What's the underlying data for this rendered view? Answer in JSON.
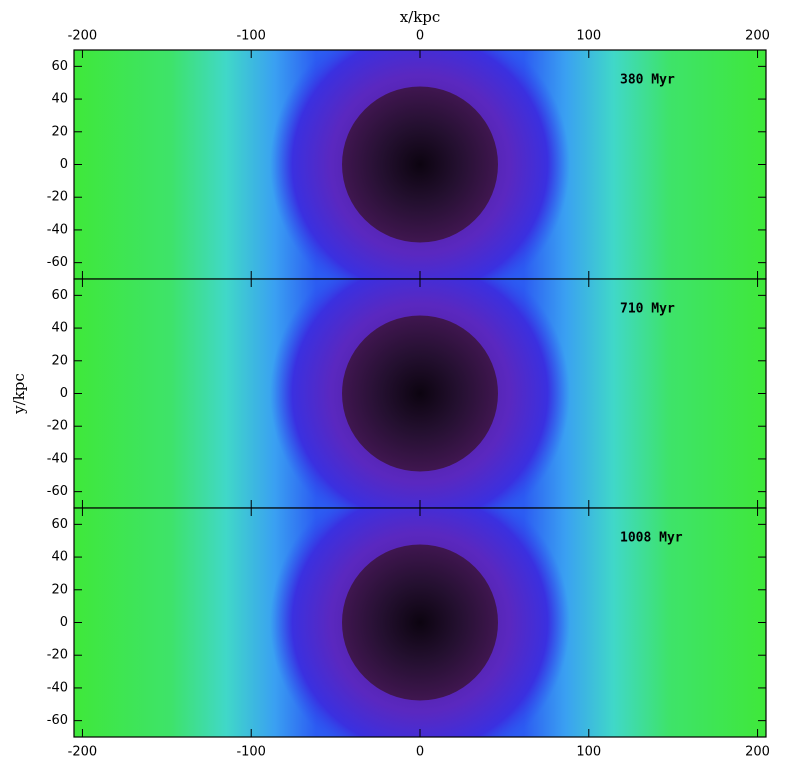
{
  "chart_data": [
    {
      "type": "image",
      "annotation": "380 Myr",
      "xlabel": "x/kpc",
      "xlim": [
        -205,
        205
      ],
      "ylim": [
        -70,
        70
      ],
      "xticks": [
        -200,
        -100,
        0,
        100,
        200
      ],
      "yticks": [
        -60,
        -40,
        -20,
        0,
        20,
        40,
        60
      ]
    },
    {
      "type": "image",
      "annotation": "710 Myr",
      "ylabel": "y/kpc",
      "xlim": [
        -205,
        205
      ],
      "ylim": [
        -70,
        70
      ],
      "xticks": [
        -200,
        -100,
        0,
        100,
        200
      ],
      "yticks": [
        -60,
        -40,
        -20,
        0,
        20,
        40,
        60
      ]
    },
    {
      "type": "image",
      "annotation": "1008 Myr",
      "xlim": [
        -205,
        205
      ],
      "ylim": [
        -70,
        70
      ],
      "xticks": [
        -200,
        -100,
        0,
        100,
        200
      ],
      "yticks": [
        -60,
        -40,
        -20,
        0,
        20,
        40,
        60
      ]
    }
  ]
}
